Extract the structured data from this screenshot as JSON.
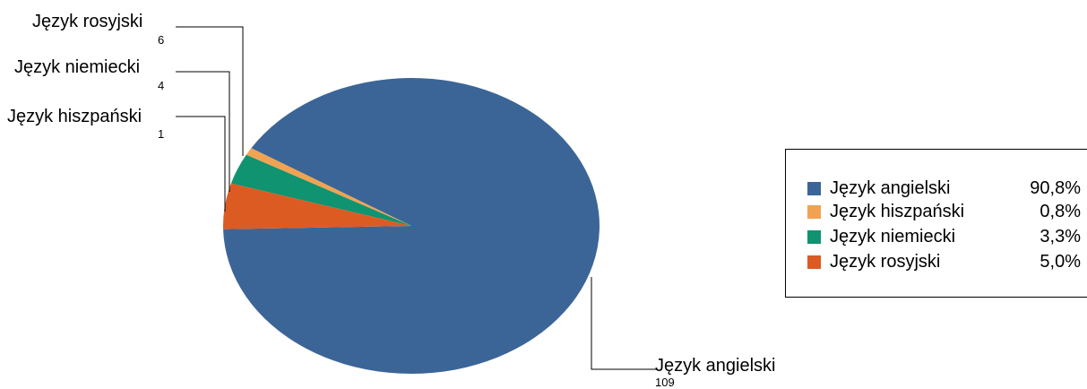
{
  "chart_data": {
    "type": "pie",
    "title": "",
    "categories": [
      "Język angielski",
      "Język hiszpański",
      "Język niemiecki",
      "Język rosyjski"
    ],
    "values": [
      109,
      1,
      4,
      6
    ],
    "percentages": [
      "90,8%",
      "0,8%",
      "3,3%",
      "5,0%"
    ],
    "colors": [
      "#3c6597",
      "#f0a352",
      "#0f9370",
      "#dc5b22"
    ],
    "labels": [
      {
        "name": "Język angielski",
        "value": "109"
      },
      {
        "name": "Język hiszpański",
        "value": "1"
      },
      {
        "name": "Język niemiecki",
        "value": "4"
      },
      {
        "name": "Język rosyjski",
        "value": "6"
      }
    ],
    "legend": {
      "position": "right",
      "items": [
        {
          "name": "Język angielski",
          "pct": "90,8%"
        },
        {
          "name": "Język hiszpański",
          "pct": "0,8%"
        },
        {
          "name": "Język niemiecki",
          "pct": "3,3%"
        },
        {
          "name": "Język rosyjski",
          "pct": "5,0%"
        }
      ]
    }
  }
}
